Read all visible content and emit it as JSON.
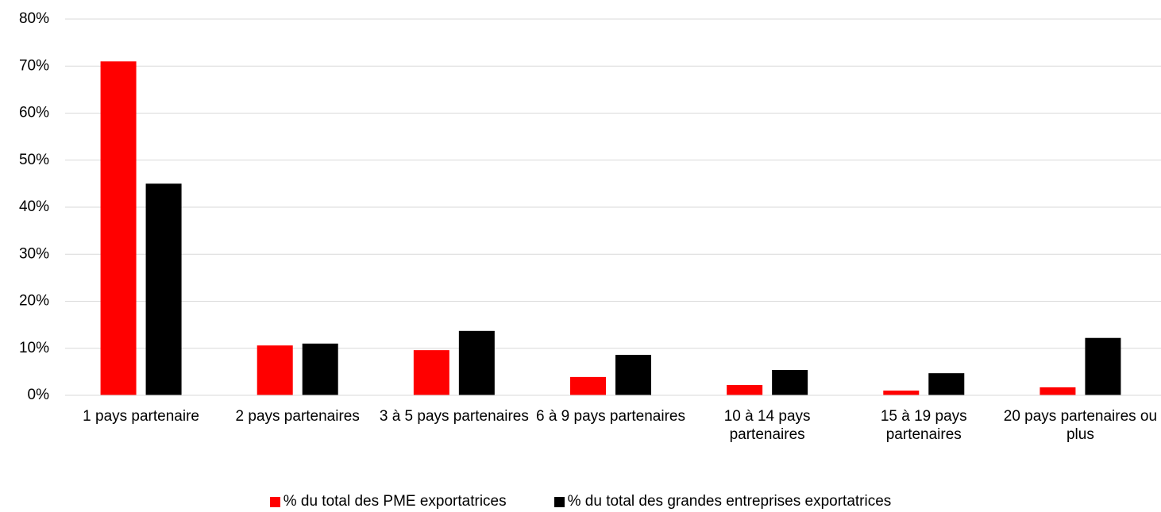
{
  "chart_data": {
    "type": "bar",
    "categories": [
      "1 pays partenaire",
      "2 pays partenaires",
      "3 à 5 pays partenaires",
      "6 à 9 pays partenaires",
      "10 à 14 pays partenaires",
      "15 à 19 pays partenaires",
      "20 pays partenaires ou plus"
    ],
    "series": [
      {
        "name": "% du total des PME exportatrices",
        "color": "#ff0000",
        "values": [
          71,
          10.6,
          9.6,
          3.9,
          2.2,
          1.0,
          1.7
        ]
      },
      {
        "name": "% du total des grandes entreprises exportatrices",
        "color": "#000000",
        "values": [
          45,
          11.0,
          13.7,
          8.6,
          5.4,
          4.7,
          12.2
        ]
      }
    ],
    "ylim": [
      0,
      80
    ],
    "yticks": [
      {
        "value": 0,
        "label": "0%"
      },
      {
        "value": 10,
        "label": "10%"
      },
      {
        "value": 20,
        "label": "20%"
      },
      {
        "value": 30,
        "label": "30%"
      },
      {
        "value": 40,
        "label": "40%"
      },
      {
        "value": 50,
        "label": "50%"
      },
      {
        "value": 60,
        "label": "60%"
      },
      {
        "value": 70,
        "label": "70%"
      },
      {
        "value": 80,
        "label": "80%"
      }
    ],
    "grid": true,
    "legend": "bottom"
  }
}
